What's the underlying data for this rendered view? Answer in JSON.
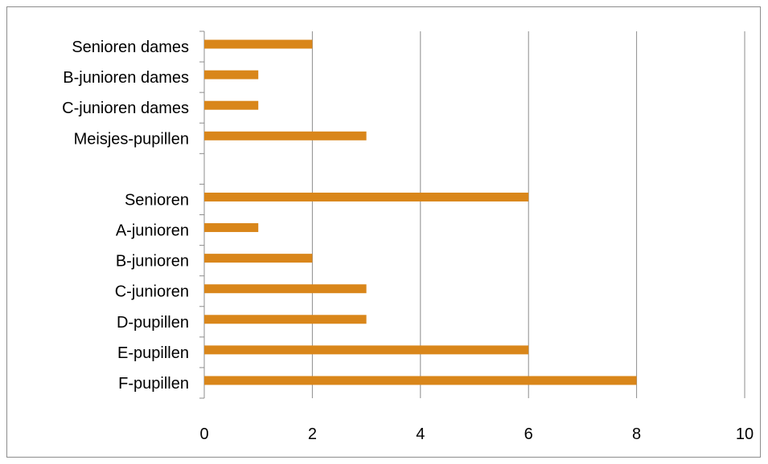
{
  "chart_data": {
    "type": "bar",
    "orientation": "horizontal",
    "title": "",
    "xlabel": "",
    "ylabel": "",
    "xlim": [
      0,
      10
    ],
    "xticks": [
      0,
      2,
      4,
      6,
      8,
      10
    ],
    "grid": "vertical",
    "legend": "none",
    "categories": [
      "Senioren dames",
      "B-junioren dames",
      "C-junioren dames",
      "Meisjes-pupillen",
      "",
      "Senioren",
      "A-junioren",
      "B-junioren",
      "C-junioren",
      "D-pupillen",
      "E-pupillen",
      "F-pupillen"
    ],
    "series": [
      {
        "values": [
          2,
          1,
          1,
          3,
          null,
          6,
          1,
          2,
          3,
          3,
          6,
          8
        ]
      }
    ],
    "colors": {
      "bar": "#D9861A",
      "grid": "#8c8c8c",
      "axis": "#8c8c8c"
    }
  }
}
